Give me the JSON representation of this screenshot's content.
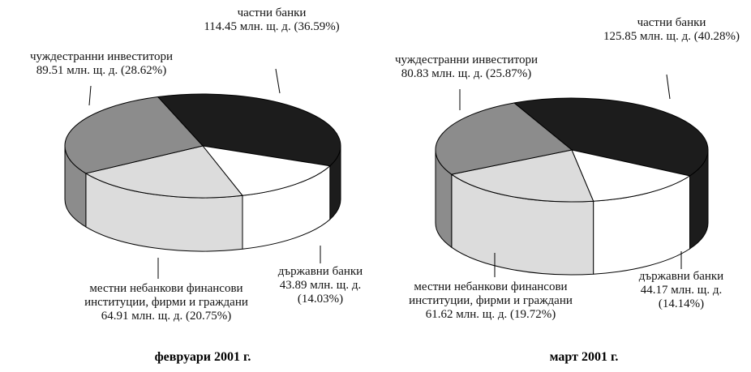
{
  "chart_data": [
    {
      "type": "pie",
      "title": "февруари 2001 г.",
      "categories": [
        "частни банки",
        "държавни банки",
        "местни небанкови финансови институции, фирми и граждани",
        "чуждестранни инвеститори"
      ],
      "values": [
        114.45,
        43.89,
        64.91,
        89.51
      ],
      "value_labels": [
        "114.45 млн. щ. д. (36.59%)",
        "43.89 млн. щ. д. (14.03%)",
        "64.91 млн. щ. д. (20.75%)",
        "89.51 млн. щ. д. (28.62%)"
      ],
      "colors": [
        "#1c1c1c",
        "#ffffff",
        "#dcdcdc",
        "#8c8c8c"
      ]
    },
    {
      "type": "pie",
      "title": "март 2001 г.",
      "categories": [
        "частни банки",
        "държавни банки",
        "местни небанкови финансови институции, фирми и граждани",
        "чуждестранни инвеститори"
      ],
      "values": [
        125.85,
        44.17,
        61.62,
        80.83
      ],
      "value_labels": [
        "125.85 млн. щ. д. (40.28%)",
        "44.17 млн. щ. д. (14.14%)",
        "61.62 млн. щ. д. (19.72%)",
        "80.83 млн. щ. д. (25.87%)"
      ],
      "colors": [
        "#1c1c1c",
        "#ffffff",
        "#dcdcdc",
        "#8c8c8c"
      ]
    }
  ]
}
